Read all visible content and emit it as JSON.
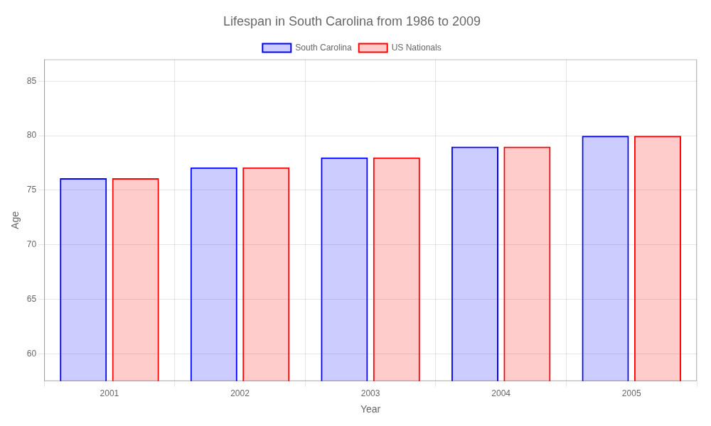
{
  "chart_data": {
    "type": "bar",
    "title": "Lifespan in South Carolina from 1986 to 2009",
    "xlabel": "Year",
    "ylabel": "Age",
    "categories": [
      "2001",
      "2002",
      "2003",
      "2004",
      "2005"
    ],
    "series": [
      {
        "name": "South Carolina",
        "color": "#0000ff",
        "values": [
          76.1,
          77.1,
          78.0,
          79.0,
          80.0
        ]
      },
      {
        "name": "US Nationals",
        "color": "#ff0000",
        "values": [
          76.1,
          77.1,
          78.0,
          79.0,
          80.0
        ]
      }
    ],
    "ylim": [
      57.5,
      87
    ],
    "yticks": [
      60,
      65,
      70,
      75,
      80,
      85
    ],
    "grid": true,
    "legend": "top"
  }
}
